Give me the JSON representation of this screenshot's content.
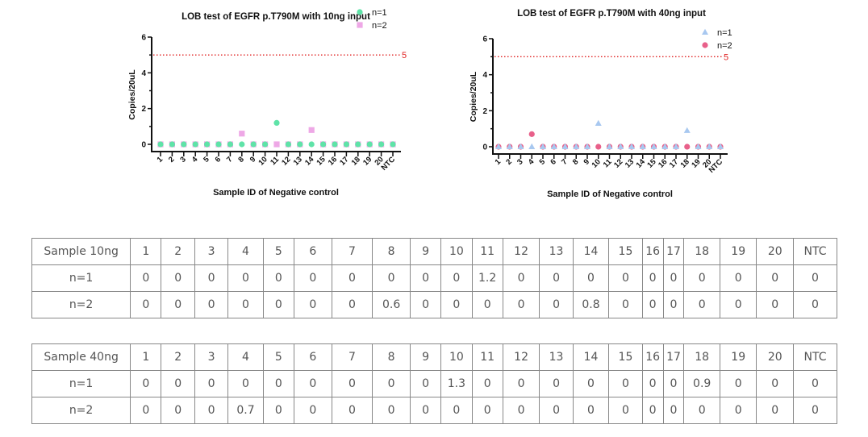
{
  "chart_data": [
    {
      "type": "scatter",
      "title": "LOB test of EGFR p.T790M with 10ng input",
      "xlabel": "Sample ID of Negative control",
      "ylabel": "Copies/20uL",
      "categories": [
        "1",
        "2",
        "3",
        "4",
        "5",
        "6",
        "7",
        "8",
        "9",
        "10",
        "11",
        "12",
        "13",
        "14",
        "15",
        "16",
        "17",
        "18",
        "19",
        "20",
        "NTC"
      ],
      "ylim": [
        0,
        6
      ],
      "yticks": [
        "0",
        "2",
        "4",
        "6"
      ],
      "threshold": {
        "value": 5,
        "label": "5",
        "color": "#e02020"
      },
      "legend_position": "top-right",
      "series": [
        {
          "name": "n=1",
          "marker": "circle",
          "color": "#5fe3a8",
          "values": [
            0,
            0,
            0,
            0,
            0,
            0,
            0,
            0,
            0,
            0,
            1.2,
            0,
            0,
            0,
            0,
            0,
            0,
            0,
            0,
            0,
            0
          ]
        },
        {
          "name": "n=2",
          "marker": "square",
          "color": "#eea8e6",
          "values": [
            0,
            0,
            0,
            0,
            0,
            0,
            0,
            0.6,
            0,
            0,
            0,
            0,
            0,
            0.8,
            0,
            0,
            0,
            0,
            0,
            0,
            0
          ]
        }
      ],
      "draw_order": [
        "n=2",
        "n=1"
      ]
    },
    {
      "type": "scatter",
      "title": "LOB test of EGFR p.T790M with 40ng input",
      "xlabel": "Sample ID of Negative control",
      "ylabel": "Copies/20uL",
      "categories": [
        "1",
        "2",
        "3",
        "4",
        "5",
        "6",
        "7",
        "8",
        "9",
        "10",
        "11",
        "12",
        "13",
        "14",
        "15",
        "16",
        "17",
        "18",
        "19",
        "20",
        "NTC"
      ],
      "ylim": [
        0,
        6
      ],
      "yticks": [
        "0",
        "2",
        "4",
        "6"
      ],
      "threshold": {
        "value": 5,
        "label": "5",
        "color": "#e02020"
      },
      "legend_position": "top-right",
      "series": [
        {
          "name": "n=1",
          "marker": "triangle",
          "color": "#a8c8f0",
          "values": [
            0,
            0,
            0,
            0,
            0,
            0,
            0,
            0,
            0,
            1.3,
            0,
            0,
            0,
            0,
            0,
            0,
            0,
            0.9,
            0,
            0,
            0
          ]
        },
        {
          "name": "n=2",
          "marker": "circle",
          "color": "#e8608a",
          "values": [
            0,
            0,
            0,
            0.7,
            0,
            0,
            0,
            0,
            0,
            0,
            0,
            0,
            0,
            0,
            0,
            0,
            0,
            0,
            0,
            0,
            0
          ]
        }
      ],
      "draw_order": [
        "n=2",
        "n=1"
      ]
    }
  ],
  "tables": [
    {
      "header": [
        "Sample 10ng",
        "1",
        "2",
        "3",
        "4",
        "5",
        "6",
        "7",
        "8",
        "9",
        "10",
        "11",
        "12",
        "13",
        "14",
        "15",
        "16",
        "17",
        "18",
        "19",
        "20",
        "NTC"
      ],
      "rows": [
        [
          "n=1",
          "0",
          "0",
          "0",
          "0",
          "0",
          "0",
          "0",
          "0",
          "0",
          "0",
          "1.2",
          "0",
          "0",
          "0",
          "0",
          "0",
          "0",
          "0",
          "0",
          "0",
          "0"
        ],
        [
          "n=2",
          "0",
          "0",
          "0",
          "0",
          "0",
          "0",
          "0",
          "0.6",
          "0",
          "0",
          "0",
          "0",
          "0",
          "0.8",
          "0",
          "0",
          "0",
          "0",
          "0",
          "0",
          "0"
        ]
      ]
    },
    {
      "header": [
        "Sample 40ng",
        "1",
        "2",
        "3",
        "4",
        "5",
        "6",
        "7",
        "8",
        "9",
        "10",
        "11",
        "12",
        "13",
        "14",
        "15",
        "16",
        "17",
        "18",
        "19",
        "20",
        "NTC"
      ],
      "rows": [
        [
          "n=1",
          "0",
          "0",
          "0",
          "0",
          "0",
          "0",
          "0",
          "0",
          "0",
          "1.3",
          "0",
          "0",
          "0",
          "0",
          "0",
          "0",
          "0",
          "0.9",
          "0",
          "0",
          "0"
        ],
        [
          "n=2",
          "0",
          "0",
          "0",
          "0.7",
          "0",
          "0",
          "0",
          "0",
          "0",
          "0",
          "0",
          "0",
          "0",
          "0",
          "0",
          "0",
          "0",
          "0",
          "0",
          "0",
          "0"
        ]
      ]
    }
  ]
}
